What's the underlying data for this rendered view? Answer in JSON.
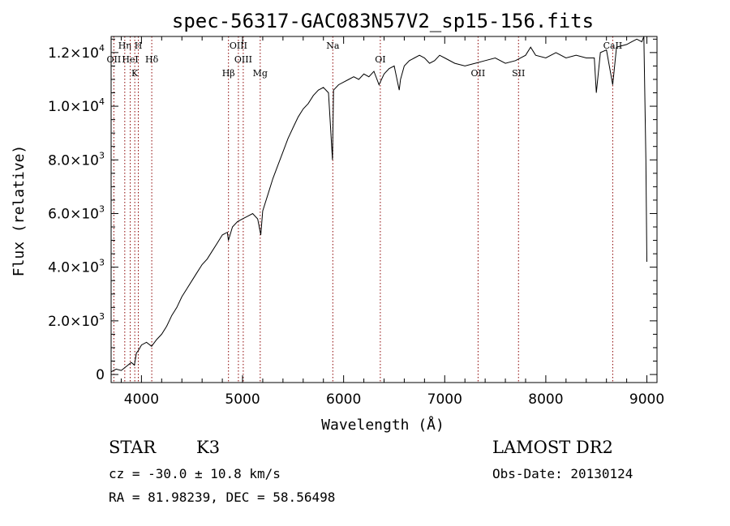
{
  "chart_data": {
    "type": "line",
    "title": "spec-56317-GAC083N57V2_sp15-156.fits",
    "xlabel": "Wavelength (Å)",
    "ylabel": "Flux (relative)",
    "xlim": [
      3700,
      9100
    ],
    "ylim": [
      -300,
      12600
    ],
    "x_ticks": [
      4000,
      5000,
      6000,
      7000,
      8000,
      9000
    ],
    "x_tick_labels": [
      "4000",
      "5000",
      "6000",
      "7000",
      "8000",
      "9000"
    ],
    "y_ticks": [
      0,
      2000,
      4000,
      6000,
      8000,
      10000,
      12000
    ],
    "y_tick_mantissas": [
      "0",
      "2.0×10",
      "4.0×10",
      "6.0×10",
      "8.0×10",
      "1.0×10",
      "1.2×10"
    ],
    "y_tick_exponents": [
      "",
      "3",
      "3",
      "3",
      "3",
      "4",
      "4"
    ],
    "grid": false,
    "series": [
      {
        "x": [
          3700,
          3750,
          3800,
          3850,
          3900,
          3930,
          3950,
          3970,
          4000,
          4050,
          4100,
          4150,
          4200,
          4250,
          4300,
          4350,
          4400,
          4450,
          4500,
          4550,
          4600,
          4650,
          4700,
          4750,
          4800,
          4850,
          4860,
          4900,
          4950,
          5000,
          5050,
          5100,
          5150,
          5180,
          5200,
          5250,
          5300,
          5350,
          5400,
          5450,
          5500,
          5550,
          5600,
          5650,
          5700,
          5750,
          5800,
          5850,
          5890,
          5900,
          5950,
          6000,
          6050,
          6100,
          6150,
          6200,
          6250,
          6300,
          6350,
          6400,
          6450,
          6500,
          6550,
          6563,
          6600,
          6650,
          6700,
          6750,
          6800,
          6850,
          6900,
          6950,
          7000,
          7100,
          7200,
          7300,
          7400,
          7500,
          7600,
          7700,
          7800,
          7850,
          7900,
          8000,
          8100,
          8200,
          8300,
          8400,
          8480,
          8500,
          8540,
          8600,
          8662,
          8700,
          8800,
          8850,
          8900,
          8950,
          8970,
          8990,
          9000
        ],
        "y": [
          100,
          200,
          150,
          300,
          450,
          350,
          800,
          900,
          1100,
          1200,
          1050,
          1300,
          1500,
          1800,
          2200,
          2500,
          2900,
          3200,
          3500,
          3800,
          4100,
          4300,
          4600,
          4900,
          5200,
          5300,
          5000,
          5500,
          5700,
          5800,
          5900,
          6000,
          5800,
          5200,
          6100,
          6700,
          7300,
          7800,
          8300,
          8800,
          9200,
          9600,
          9900,
          10100,
          10400,
          10600,
          10700,
          10500,
          8000,
          10600,
          10800,
          10900,
          11000,
          11100,
          11000,
          11200,
          11100,
          11300,
          10800,
          11200,
          11400,
          11500,
          10600,
          11000,
          11500,
          11700,
          11800,
          11900,
          11800,
          11600,
          11700,
          11900,
          11800,
          11600,
          11500,
          11600,
          11700,
          11800,
          11600,
          11700,
          11900,
          12200,
          11900,
          11800,
          12000,
          11800,
          11900,
          11800,
          11800,
          10500,
          12000,
          12100,
          10800,
          12200,
          12300,
          12400,
          12500,
          12400,
          12600,
          8000,
          4200
        ]
      }
    ],
    "line_markers": [
      {
        "label": "OII",
        "x": 3727,
        "row": 1
      },
      {
        "label": "Hη",
        "x": 3835,
        "row": 0
      },
      {
        "label": "HeI",
        "x": 3889,
        "row": 1
      },
      {
        "label": "K",
        "x": 3934,
        "row": 2
      },
      {
        "label": "H",
        "x": 3969,
        "row": 0
      },
      {
        "label": "Hδ",
        "x": 4102,
        "row": 1
      },
      {
        "label": "Hβ",
        "x": 4861,
        "row": 2
      },
      {
        "label": "OIII",
        "x": 4959,
        "row": 0
      },
      {
        "label": "OIII",
        "x": 5007,
        "row": 1
      },
      {
        "label": "Mg",
        "x": 5175,
        "row": 2
      },
      {
        "label": "Na",
        "x": 5893,
        "row": 0
      },
      {
        "label": "OI",
        "x": 6363,
        "row": 1
      },
      {
        "label": "OII",
        "x": 7330,
        "row": 2
      },
      {
        "label": "SII",
        "x": 7730,
        "row": 2
      },
      {
        "label": "CaII",
        "x": 8662,
        "row": 0
      }
    ]
  },
  "info": {
    "object_class": "STAR",
    "subclass": "K3",
    "survey": "LAMOST DR2",
    "redshift_line": "cz = -30.0 ± 10.8 km/s",
    "obs_date": "Obs-Date: 20130124",
    "coords": "RA =  81.98239, DEC =  58.56498"
  }
}
